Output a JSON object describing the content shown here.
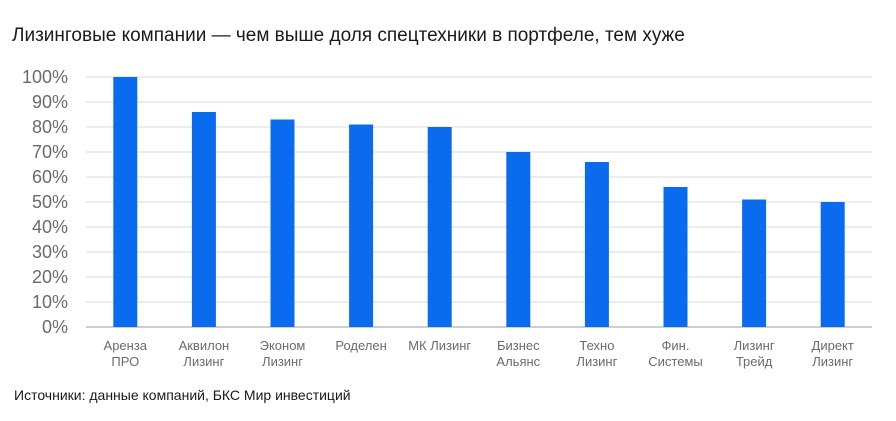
{
  "header": {
    "title": "Лизинговые компании — чем выше доля спецтехники в портфеле, тем хуже"
  },
  "footer": {
    "source": "Источники: данные компаний, БКС Мир инвестиций"
  },
  "colors": {
    "bar": "#0a6bef",
    "grid": "#d9d9d9",
    "axis": "#9e9e9e",
    "tick_text": "#6b6b6b"
  },
  "chart_data": {
    "type": "bar",
    "title": "Лизинговые компании — чем выше доля спецтехники в портфеле, тем хуже",
    "xlabel": "",
    "ylabel": "",
    "ylim": [
      0,
      100
    ],
    "yticks": [
      "0%",
      "10%",
      "20%",
      "30%",
      "40%",
      "50%",
      "60%",
      "70%",
      "80%",
      "90%",
      "100%"
    ],
    "grid": true,
    "categories": [
      [
        "Арен­за",
        "ПРО"
      ],
      [
        "Аквилон",
        "Лизинг"
      ],
      [
        "Эконом",
        "Лизинг"
      ],
      [
        "Роделен"
      ],
      [
        "МК Лизинг"
      ],
      [
        "Бизнес",
        "Альянс"
      ],
      [
        "Техно",
        "Лизинг"
      ],
      [
        "Фин.",
        "Системы"
      ],
      [
        "Лизинг",
        "Трейд"
      ],
      [
        "Директ",
        "Лизинг"
      ]
    ],
    "series": [
      {
        "name": "Доля спецтехники в портфеле",
        "values": [
          100,
          86,
          83,
          81,
          80,
          70,
          66,
          56,
          51,
          50
        ]
      }
    ]
  }
}
